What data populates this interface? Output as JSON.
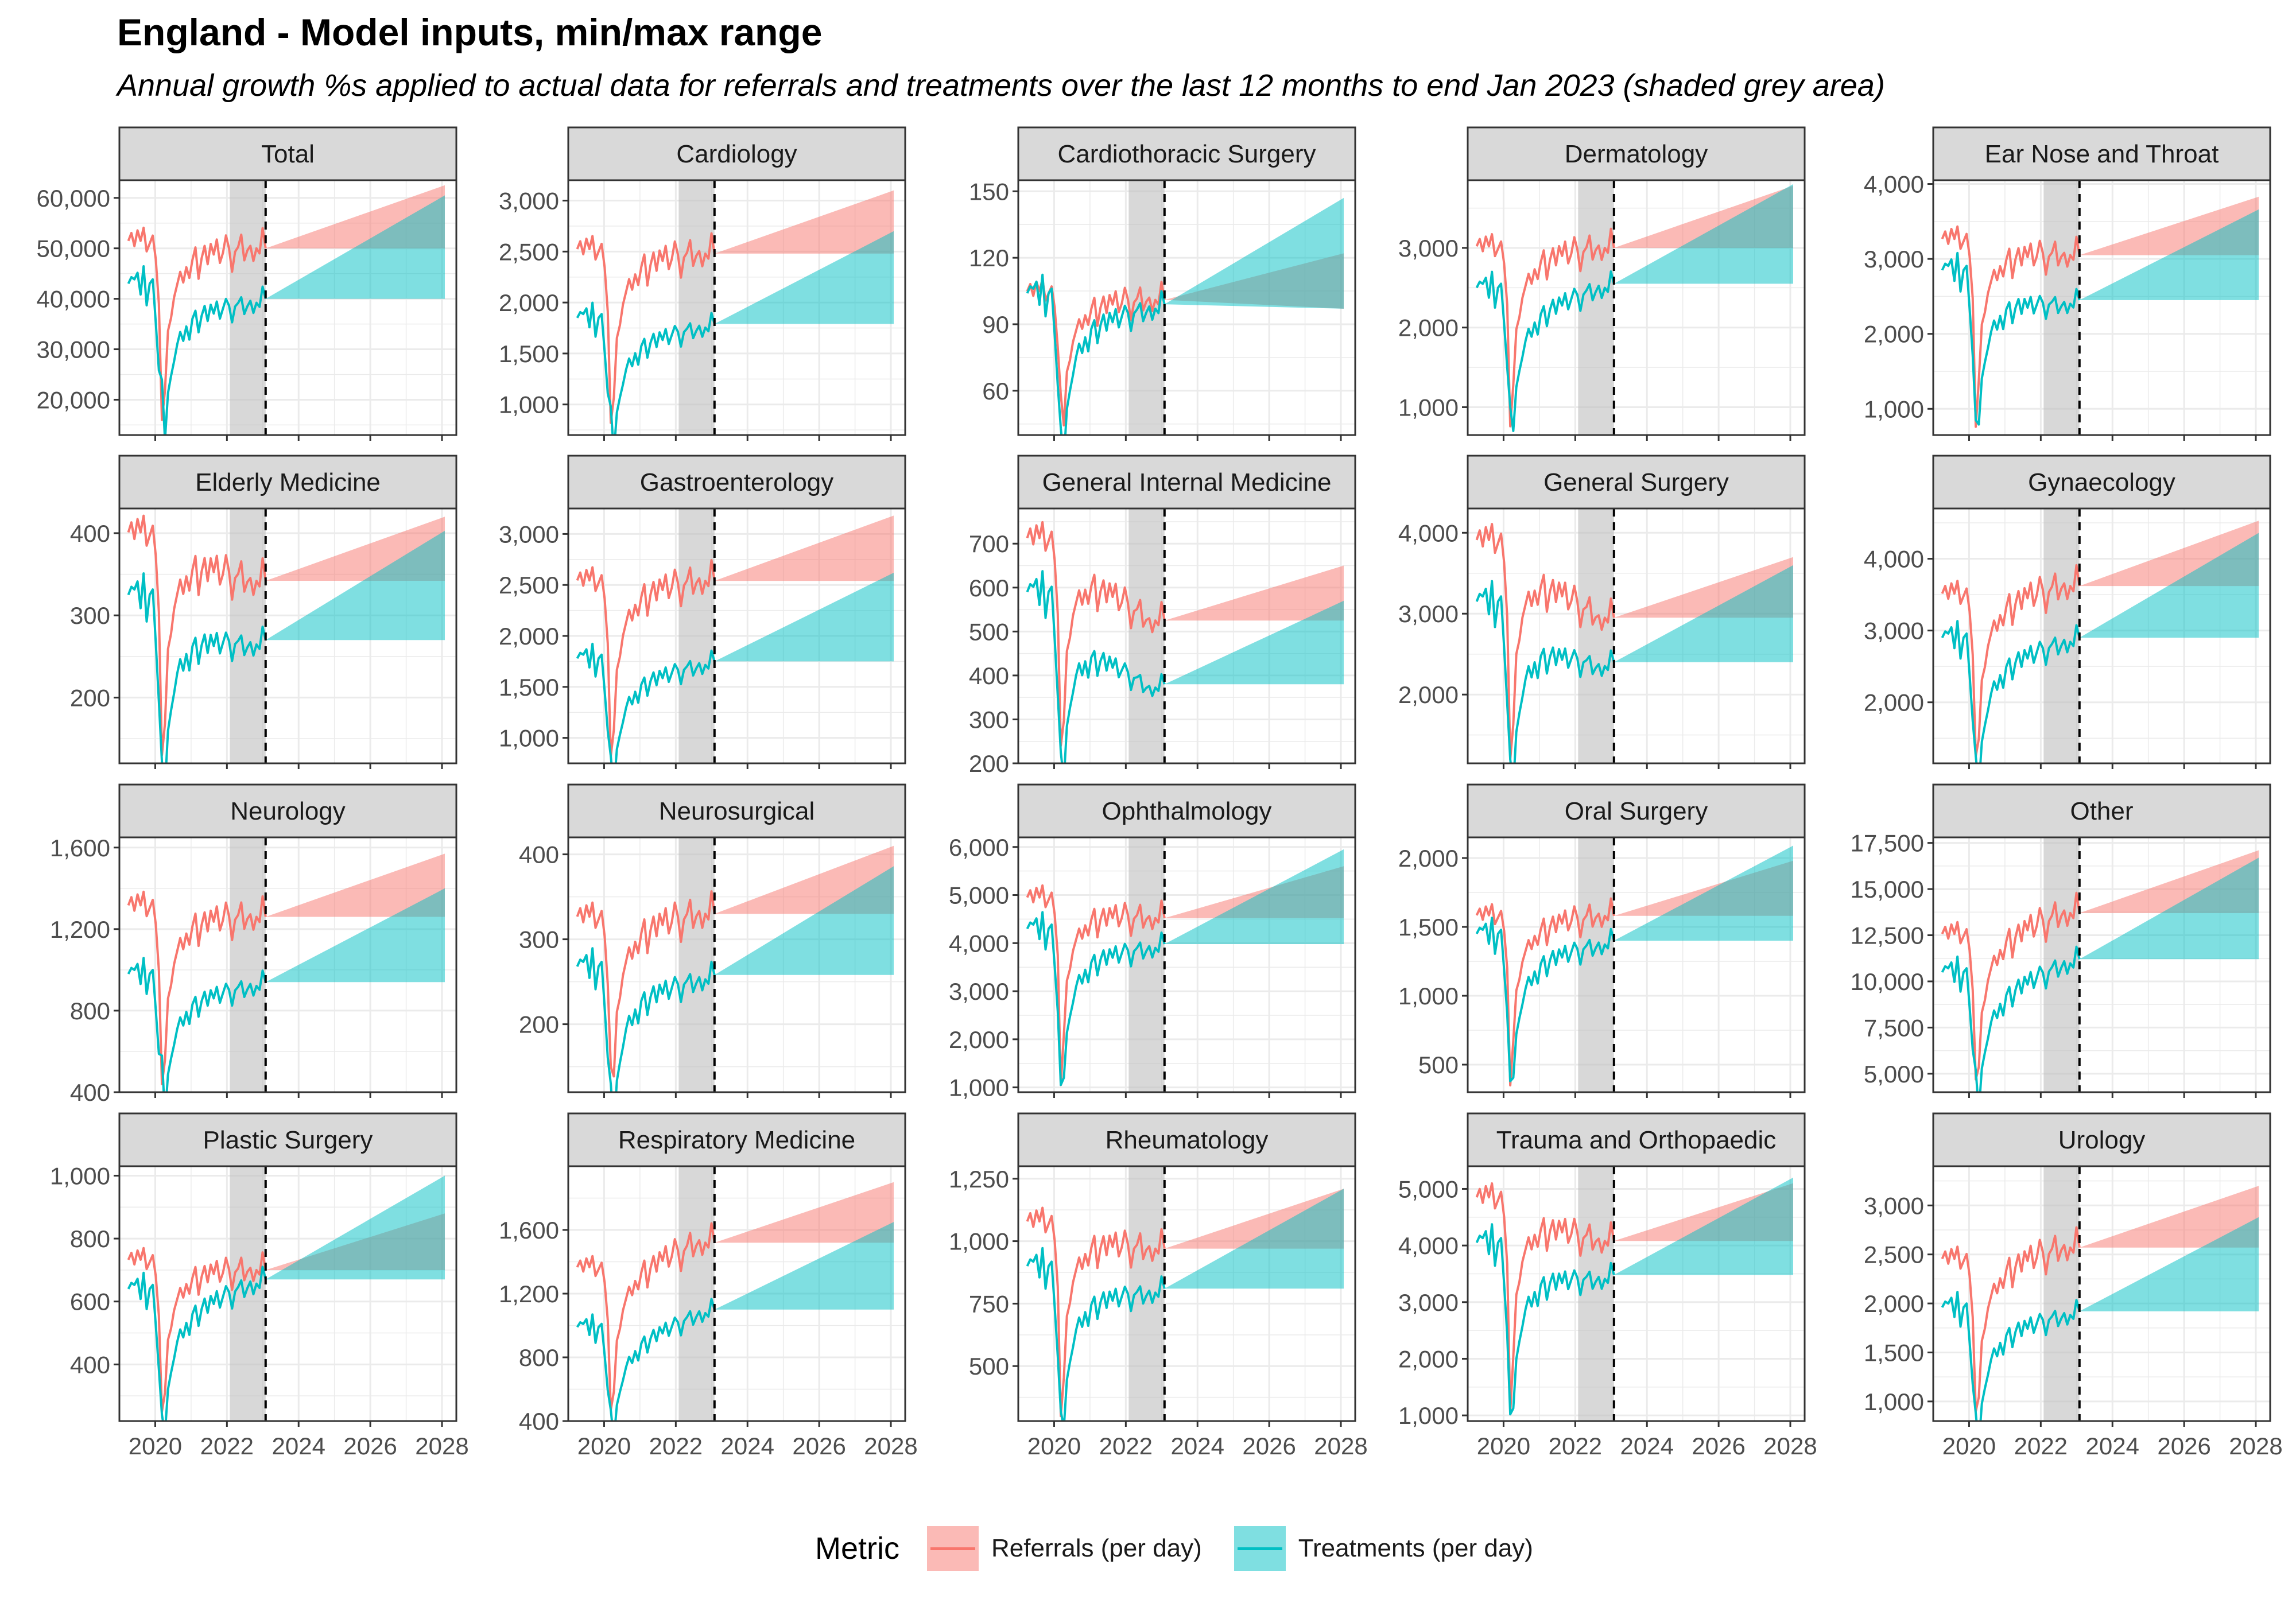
{
  "title": "England - Model inputs, min/max range",
  "subtitle": "Annual growth %s applied to actual data for referrals and treatments over the last 12 months to end Jan 2023 (shaded grey area)",
  "legend": {
    "title": "Metric",
    "items": [
      {
        "label": "Referrals (per day)",
        "color": "#F8766D"
      },
      {
        "label": "Treatments (per day)",
        "color": "#00BFC4"
      }
    ]
  },
  "colors": {
    "referrals": "#F8766D",
    "treatments": "#00BFC4",
    "strip": "#D9D9D9",
    "grey_window": "#BEBEBE",
    "grid": "#EBEBEB"
  },
  "chart_data": {
    "type": "line",
    "layout": "facet grid 4 rows x 5 columns, shared x axis",
    "x_ticks": [
      "2020",
      "2022",
      "2024",
      "2026",
      "2028"
    ],
    "xlim": [
      2019.0,
      2028.4
    ],
    "shaded_window": [
      2022.08,
      2023.08
    ],
    "forecast_start": 2023.08,
    "forecast_end": 2028.08,
    "shape": {
      "x_start": 2019.25,
      "months": 46,
      "ref_factors": [
        0.99,
        1.02,
        0.97,
        1.03,
        0.99,
        1.04,
        0.95,
        0.98,
        1.01,
        0.92,
        0.75,
        0.32,
        0.42,
        0.65,
        0.7,
        0.78,
        0.83,
        0.88,
        0.84,
        0.9,
        0.86,
        0.93,
        0.98,
        0.86,
        0.94,
        0.99,
        0.92,
        1.0,
        0.96,
        1.02,
        0.93,
        0.97,
        1.04,
        0.99,
        0.9,
        0.98,
        1.0,
        1.05,
        0.95,
        0.99,
        1.01,
        0.95,
        1.0,
        0.98,
        1.08,
        1.0
      ],
      "trt_factors": [
        1.0,
        1.03,
        1.02,
        1.05,
        0.95,
        1.08,
        0.9,
        1.0,
        1.02,
        0.82,
        0.6,
        0.22,
        0.28,
        0.5,
        0.58,
        0.65,
        0.73,
        0.79,
        0.75,
        0.82,
        0.76,
        0.86,
        0.9,
        0.8,
        0.88,
        0.93,
        0.86,
        0.94,
        0.9,
        0.96,
        0.88,
        0.93,
        0.98,
        0.95,
        0.87,
        0.95,
        0.97,
        1.0,
        0.92,
        0.96,
        0.99,
        0.93,
        0.98,
        0.96,
        1.06,
        1.0
      ]
    },
    "panels": [
      {
        "name": "Total",
        "y_ticks": [
          20000,
          30000,
          40000,
          50000,
          60000
        ],
        "ylim": [
          13000,
          63500
        ],
        "referrals": {
          "base": 50000,
          "min_end": 50000,
          "max_end": 62500,
          "pre_level": 52000,
          "trough": 16000
        },
        "treatments": {
          "base": 40000,
          "min_end": 40000,
          "max_end": 60500,
          "pre_level": 43000,
          "trough": 24000
        }
      },
      {
        "name": "Cardiology",
        "y_ticks": [
          1000,
          1500,
          2000,
          2500,
          3000
        ],
        "ylim": [
          700,
          3200
        ],
        "referrals": {
          "base": 2480,
          "min_end": 2480,
          "max_end": 3100,
          "pre_level": 2550,
          "trough": 820
        },
        "treatments": {
          "base": 1790,
          "min_end": 1790,
          "max_end": 2700,
          "pre_level": 1850,
          "trough": 980
        }
      },
      {
        "name": "Cardiothoracic Surgery",
        "y_ticks": [
          60,
          90,
          120,
          150
        ],
        "ylim": [
          40,
          155
        ],
        "referrals": {
          "base": 101,
          "min_end": 97,
          "max_end": 122,
          "pre_level": 106,
          "trough": 58
        },
        "treatments": {
          "base": 99,
          "min_end": 97,
          "max_end": 147,
          "pre_level": 104,
          "trough": 43
        }
      },
      {
        "name": "Dermatology",
        "y_ticks": [
          1000,
          2000,
          3000
        ],
        "ylim": [
          650,
          3850
        ],
        "referrals": {
          "base": 3000,
          "min_end": 3000,
          "max_end": 3780,
          "pre_level": 3050,
          "trough": 760
        },
        "treatments": {
          "base": 2550,
          "min_end": 2550,
          "max_end": 3800,
          "pre_level": 2500,
          "trough": 1000
        }
      },
      {
        "name": "Ear Nose and Throat",
        "y_ticks": [
          1000,
          2000,
          3000,
          4000
        ],
        "ylim": [
          650,
          4050
        ],
        "referrals": {
          "base": 3050,
          "min_end": 3050,
          "max_end": 3830,
          "pre_level": 3300,
          "trough": 760
        },
        "treatments": {
          "base": 2450,
          "min_end": 2450,
          "max_end": 3660,
          "pre_level": 2850,
          "trough": 850
        }
      },
      {
        "name": "Elderly Medicine",
        "y_ticks": [
          200,
          300,
          400
        ],
        "ylim": [
          120,
          430
        ],
        "referrals": {
          "base": 342,
          "min_end": 342,
          "max_end": 420,
          "pre_level": 405,
          "trough": 130
        },
        "treatments": {
          "base": 270,
          "min_end": 270,
          "max_end": 403,
          "pre_level": 325,
          "trough": 122
        }
      },
      {
        "name": "Gastroenterology",
        "y_ticks": [
          1000,
          1500,
          2000,
          2500,
          3000
        ],
        "ylim": [
          750,
          3250
        ],
        "referrals": {
          "base": 2540,
          "min_end": 2540,
          "max_end": 3180,
          "pre_level": 2570,
          "trough": 820
        },
        "treatments": {
          "base": 1750,
          "min_end": 1750,
          "max_end": 2620,
          "pre_level": 1780,
          "trough": 820
        }
      },
      {
        "name": "General Internal Medicine",
        "y_ticks": [
          200,
          300,
          400,
          500,
          600,
          700
        ],
        "ylim": [
          200,
          780
        ],
        "referrals": {
          "base": 525,
          "min_end": 525,
          "max_end": 650,
          "pre_level": 720,
          "trough": 240
        },
        "treatments": {
          "base": 380,
          "min_end": 380,
          "max_end": 570,
          "pre_level": 590,
          "trough": 225
        }
      },
      {
        "name": "General Surgery",
        "y_ticks": [
          2000,
          3000,
          4000
        ],
        "ylim": [
          1150,
          4300
        ],
        "referrals": {
          "base": 2950,
          "min_end": 2950,
          "max_end": 3700,
          "pre_level": 3950,
          "trough": 1200
        },
        "treatments": {
          "base": 2400,
          "min_end": 2400,
          "max_end": 3600,
          "pre_level": 3150,
          "trough": 1200
        }
      },
      {
        "name": "Gynaecology",
        "y_ticks": [
          2000,
          3000,
          4000
        ],
        "ylim": [
          1150,
          4700
        ],
        "referrals": {
          "base": 3620,
          "min_end": 3620,
          "max_end": 4530,
          "pre_level": 3550,
          "trough": 1250
        },
        "treatments": {
          "base": 2900,
          "min_end": 2900,
          "max_end": 4360,
          "pre_level": 2900,
          "trough": 1250
        }
      },
      {
        "name": "Neurology",
        "y_ticks": [
          400,
          800,
          1200,
          1600
        ],
        "ylim": [
          400,
          1650
        ],
        "referrals": {
          "base": 1260,
          "min_end": 1260,
          "max_end": 1570,
          "pre_level": 1330,
          "trough": 440
        },
        "treatments": {
          "base": 940,
          "min_end": 940,
          "max_end": 1400,
          "pre_level": 980,
          "trough": 580
        }
      },
      {
        "name": "Neurosurgical",
        "y_ticks": [
          200,
          300,
          400
        ],
        "ylim": [
          120,
          420
        ],
        "referrals": {
          "base": 330,
          "min_end": 330,
          "max_end": 410,
          "pre_level": 330,
          "trough": 150
        },
        "treatments": {
          "base": 258,
          "min_end": 258,
          "max_end": 386,
          "pre_level": 268,
          "trough": 130
        }
      },
      {
        "name": "Ophthalmology",
        "y_ticks": [
          1000,
          2000,
          3000,
          4000,
          5000,
          6000
        ],
        "ylim": [
          900,
          6200
        ],
        "referrals": {
          "base": 4520,
          "min_end": 4520,
          "max_end": 5600,
          "pre_level": 5000,
          "trough": 1050
        },
        "treatments": {
          "base": 3980,
          "min_end": 3980,
          "max_end": 5950,
          "pre_level": 4300,
          "trough": 1050
        }
      },
      {
        "name": "Oral Surgery",
        "y_ticks": [
          500,
          1000,
          1500,
          2000
        ],
        "ylim": [
          300,
          2150
        ],
        "referrals": {
          "base": 1580,
          "min_end": 1580,
          "max_end": 1980,
          "pre_level": 1600,
          "trough": 350
        },
        "treatments": {
          "base": 1400,
          "min_end": 1400,
          "max_end": 2090,
          "pre_level": 1450,
          "trough": 380
        }
      },
      {
        "name": "Other",
        "y_ticks": [
          5000,
          7500,
          10000,
          12500,
          15000,
          17500
        ],
        "ylim": [
          4000,
          17800
        ],
        "referrals": {
          "base": 13700,
          "min_end": 13700,
          "max_end": 17100,
          "pre_level": 12700,
          "trough": 4700
        },
        "treatments": {
          "base": 11200,
          "min_end": 11200,
          "max_end": 16700,
          "pre_level": 10500,
          "trough": 5200
        }
      },
      {
        "name": "Plastic Surgery",
        "y_ticks": [
          400,
          600,
          800,
          1000
        ],
        "ylim": [
          220,
          1030
        ],
        "referrals": {
          "base": 700,
          "min_end": 700,
          "max_end": 880,
          "pre_level": 740,
          "trough": 250
        },
        "treatments": {
          "base": 670,
          "min_end": 670,
          "max_end": 1000,
          "pre_level": 640,
          "trough": 240
        }
      },
      {
        "name": "Respiratory Medicine",
        "y_ticks": [
          400,
          800,
          1200,
          1600
        ],
        "ylim": [
          400,
          2000
        ],
        "referrals": {
          "base": 1520,
          "min_end": 1520,
          "max_end": 1900,
          "pre_level": 1380,
          "trough": 470
        },
        "treatments": {
          "base": 1100,
          "min_end": 1100,
          "max_end": 1650,
          "pre_level": 990,
          "trough": 470
        }
      },
      {
        "name": "Rheumatology",
        "y_ticks": [
          500,
          750,
          1000,
          1250
        ],
        "ylim": [
          280,
          1300
        ],
        "referrals": {
          "base": 970,
          "min_end": 970,
          "max_end": 1210,
          "pre_level": 1090,
          "trough": 300
        },
        "treatments": {
          "base": 810,
          "min_end": 810,
          "max_end": 1210,
          "pre_level": 900,
          "trough": 320
        }
      },
      {
        "name": "Trauma and Orthopaedic",
        "y_ticks": [
          1000,
          2000,
          3000,
          4000,
          5000
        ],
        "ylim": [
          900,
          5400
        ],
        "referrals": {
          "base": 4080,
          "min_end": 4080,
          "max_end": 5100,
          "pre_level": 4900,
          "trough": 1050
        },
        "treatments": {
          "base": 3480,
          "min_end": 3480,
          "max_end": 5200,
          "pre_level": 4050,
          "trough": 1020
        }
      },
      {
        "name": "Urology",
        "y_ticks": [
          1000,
          1500,
          2000,
          2500,
          3000
        ],
        "ylim": [
          800,
          3400
        ],
        "referrals": {
          "base": 2570,
          "min_end": 2570,
          "max_end": 3200,
          "pre_level": 2480,
          "trough": 900
        },
        "treatments": {
          "base": 1920,
          "min_end": 1920,
          "max_end": 2880,
          "pre_level": 1960,
          "trough": 880
        }
      }
    ]
  }
}
